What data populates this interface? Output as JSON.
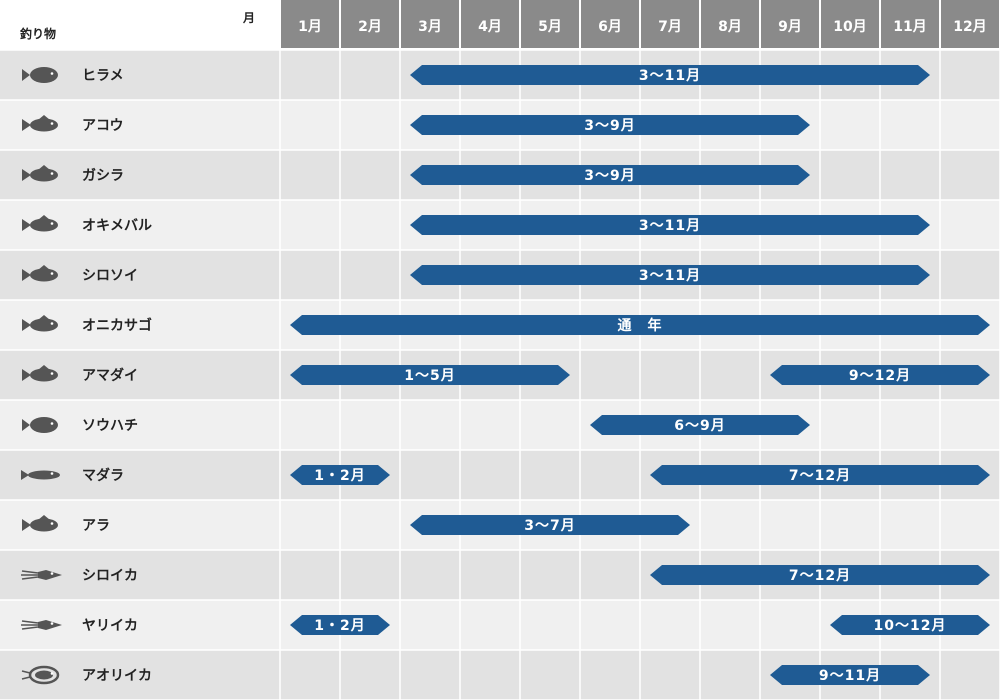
{
  "colors": {
    "header_bg": "#8a8a8a",
    "corner_bg": "#ffffff",
    "row_dark": "#e2e2e2",
    "row_light": "#f0f0f0",
    "bar": "#1f5b94",
    "fish_icon": "#555555"
  },
  "chart_data": {
    "type": "table",
    "title": "",
    "corner_top": "月",
    "corner_bottom": "釣り物",
    "months": [
      "1月",
      "2月",
      "3月",
      "4月",
      "5月",
      "6月",
      "7月",
      "8月",
      "9月",
      "10月",
      "11月",
      "12月"
    ],
    "rows": [
      {
        "name": "ヒラメ",
        "icon": "flatfish-icon",
        "periods": [
          {
            "start": 3,
            "end": 11,
            "label": "3～11月"
          }
        ]
      },
      {
        "name": "アコウ",
        "icon": "fish-icon",
        "periods": [
          {
            "start": 3,
            "end": 9,
            "label": "3～9月"
          }
        ]
      },
      {
        "name": "ガシラ",
        "icon": "fish-icon",
        "periods": [
          {
            "start": 3,
            "end": 9,
            "label": "3～9月"
          }
        ]
      },
      {
        "name": "オキメバル",
        "icon": "fish-icon",
        "periods": [
          {
            "start": 3,
            "end": 11,
            "label": "3～11月"
          }
        ]
      },
      {
        "name": "シロソイ",
        "icon": "fish-icon",
        "periods": [
          {
            "start": 3,
            "end": 11,
            "label": "3～11月"
          }
        ]
      },
      {
        "name": "オニカサゴ",
        "icon": "fish-icon",
        "periods": [
          {
            "start": 1,
            "end": 12,
            "label": "通　年"
          }
        ]
      },
      {
        "name": "アマダイ",
        "icon": "fish-icon",
        "periods": [
          {
            "start": 1,
            "end": 5,
            "label": "1～5月"
          },
          {
            "start": 9,
            "end": 12,
            "label": "9～12月"
          }
        ]
      },
      {
        "name": "ソウハチ",
        "icon": "flatfish-icon",
        "periods": [
          {
            "start": 6,
            "end": 9,
            "label": "6～9月"
          }
        ]
      },
      {
        "name": "マダラ",
        "icon": "slim-fish-icon",
        "periods": [
          {
            "start": 1,
            "end": 2,
            "label": "1・2月"
          },
          {
            "start": 7,
            "end": 12,
            "label": "7～12月"
          }
        ]
      },
      {
        "name": "アラ",
        "icon": "fish-icon",
        "periods": [
          {
            "start": 3,
            "end": 7,
            "label": "3～7月"
          }
        ]
      },
      {
        "name": "シロイカ",
        "icon": "squid-icon",
        "periods": [
          {
            "start": 7,
            "end": 12,
            "label": "7～12月"
          }
        ]
      },
      {
        "name": "ヤリイカ",
        "icon": "squid-icon",
        "periods": [
          {
            "start": 1,
            "end": 2,
            "label": "1・2月"
          },
          {
            "start": 10,
            "end": 12,
            "label": "10～12月"
          }
        ]
      },
      {
        "name": "アオリイカ",
        "icon": "cuttlefish-icon",
        "periods": [
          {
            "start": 9,
            "end": 11,
            "label": "9～11月"
          }
        ]
      }
    ]
  }
}
